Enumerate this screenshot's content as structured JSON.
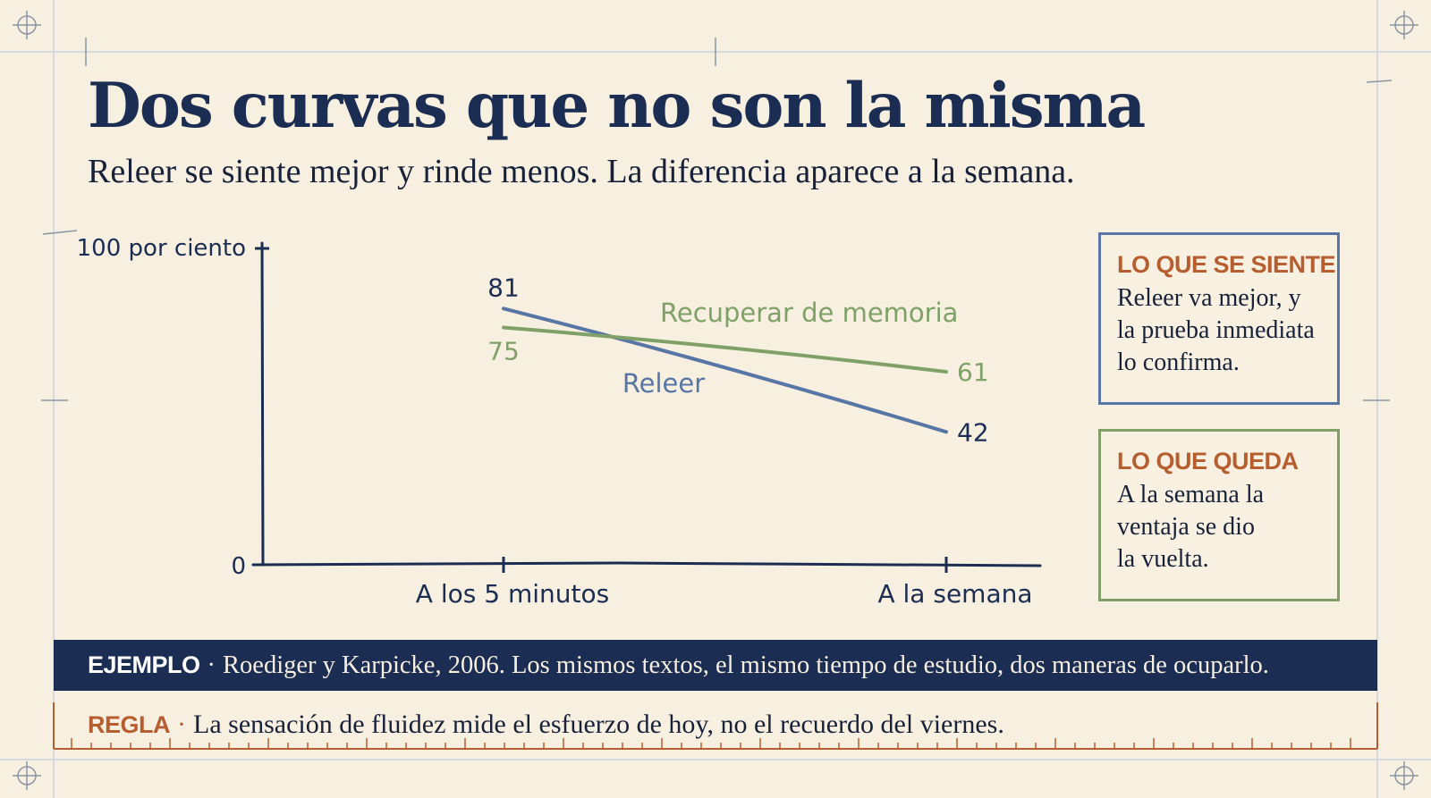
{
  "title": "Dos curvas que no son la misma",
  "subtitle": "Releer se siente mejor y rinde menos. La diferencia aparece a la semana.",
  "colors": {
    "navy": "#1b2d52",
    "reread": "#5776a6",
    "retrieval": "#7fa168",
    "accent": "#b75e31",
    "paper": "#f7efdf"
  },
  "chart_data": {
    "type": "line",
    "x": [
      "A los 5 minutos",
      "A la semana"
    ],
    "yaxis_labels": [
      "100 por ciento",
      "0"
    ],
    "ylim": [
      0,
      100
    ],
    "grid": false,
    "series": [
      {
        "name": "Releer",
        "values": [
          81,
          42
        ],
        "value_labels": [
          "81",
          "42"
        ],
        "color": "#5776a6"
      },
      {
        "name": "Recuperar de memoria",
        "values": [
          75,
          61
        ],
        "value_labels": [
          "75",
          "61"
        ],
        "color": "#7fa168"
      }
    ]
  },
  "cards": [
    {
      "title": "LO QUE SE SIENTE",
      "lines": [
        "Releer va mejor, y",
        "la prueba inmediata",
        "lo confirma."
      ]
    },
    {
      "title": "LO QUE QUEDA",
      "lines": [
        "A la semana la",
        "ventaja se dio",
        "la vuelta."
      ]
    }
  ],
  "example": {
    "label": "EJEMPLO",
    "separator": "·",
    "text": "Roediger y Karpicke, 2006. Los mismos textos, el mismo tiempo de estudio, dos maneras de ocuparlo."
  },
  "rule": {
    "label": "REGLA",
    "separator": "·",
    "text": "La sensación de fluidez mide el esfuerzo de hoy, no el recuerdo del viernes."
  }
}
